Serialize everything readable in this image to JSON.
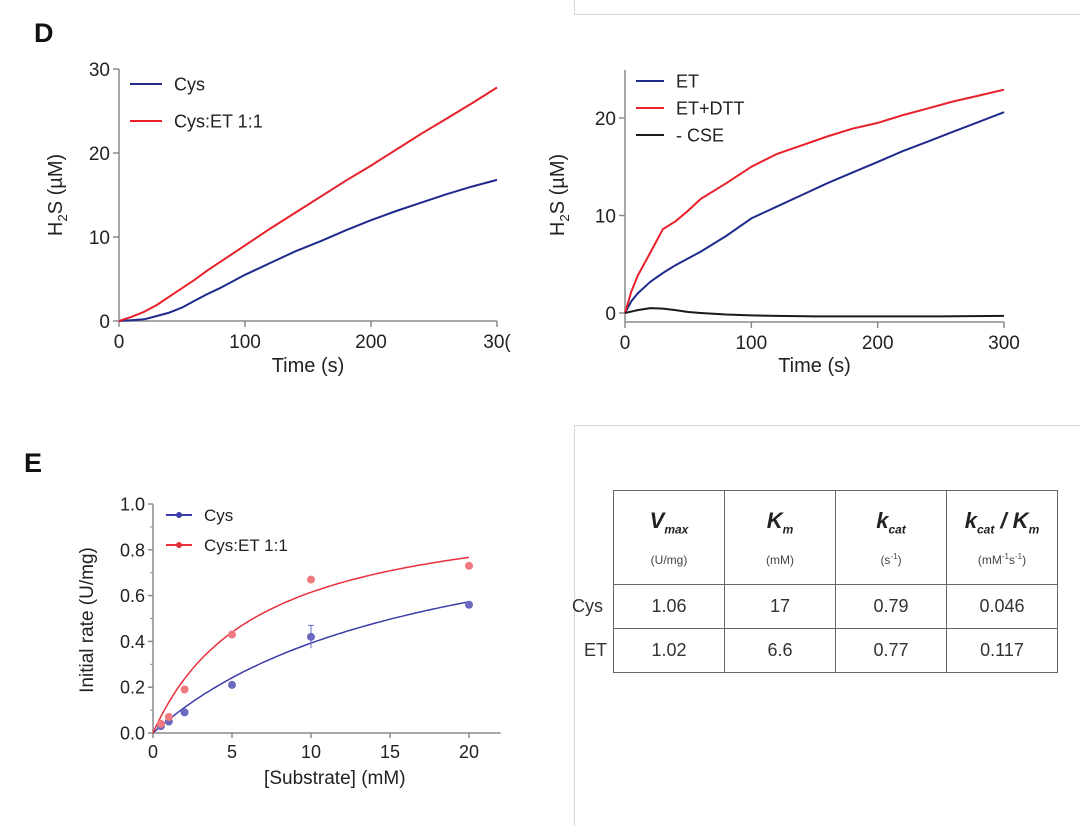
{
  "panels": {
    "D": {
      "label": "D"
    },
    "E": {
      "label": "E"
    }
  },
  "chart_data": [
    {
      "id": "D-left",
      "type": "line",
      "title": "",
      "xlabel": "Time (s)",
      "ylabel_main": "H",
      "ylabel_sub": "2",
      "ylabel_rest": "S (µM)",
      "xlim": [
        0,
        300
      ],
      "ylim": [
        0,
        30
      ],
      "xticks": [
        0,
        100,
        200,
        300
      ],
      "xtick_labels": [
        "0",
        "100",
        "200",
        "30("
      ],
      "yticks": [
        0,
        10,
        20,
        30
      ],
      "ytick_labels": [
        "0",
        "10",
        "20",
        "30"
      ],
      "grid": false,
      "legend_position": "top-left",
      "series": [
        {
          "name": "Cys",
          "color": "#1f2a8c",
          "x": [
            0,
            10,
            20,
            30,
            40,
            50,
            60,
            70,
            80,
            100,
            120,
            140,
            160,
            180,
            200,
            220,
            240,
            260,
            280,
            300
          ],
          "y": [
            0,
            0.1,
            0.2,
            0.6,
            1.0,
            1.6,
            2.4,
            3.2,
            3.9,
            5.5,
            6.9,
            8.3,
            9.5,
            10.8,
            12.0,
            13.1,
            14.1,
            15.1,
            16.0,
            16.8
          ]
        },
        {
          "name": "Cys:ET 1:1",
          "color": "#e8202a",
          "x": [
            0,
            10,
            20,
            30,
            40,
            50,
            60,
            70,
            80,
            100,
            120,
            140,
            160,
            180,
            200,
            220,
            240,
            260,
            280,
            300
          ],
          "y": [
            0,
            0.5,
            1.1,
            1.9,
            2.9,
            3.9,
            4.9,
            6.0,
            7.0,
            9.0,
            11.0,
            12.9,
            14.8,
            16.7,
            18.5,
            20.4,
            22.3,
            24.1,
            25.9,
            27.8
          ]
        }
      ]
    },
    {
      "id": "D-right",
      "type": "line",
      "title": "",
      "xlabel": "Time (s)",
      "ylabel_main": "H",
      "ylabel_sub": "2",
      "ylabel_rest": "S (µM)",
      "xlim": [
        0,
        300
      ],
      "ylim": [
        -1,
        25
      ],
      "xticks": [
        0,
        100,
        200,
        300
      ],
      "xtick_labels": [
        "0",
        "100",
        "200",
        "300"
      ],
      "yticks": [
        0,
        10,
        20
      ],
      "ytick_labels": [
        "0",
        "10",
        "20"
      ],
      "grid": false,
      "legend_position": "top-left",
      "series": [
        {
          "name": "ET",
          "color": "#1f2a8c",
          "x": [
            0,
            5,
            10,
            20,
            30,
            40,
            50,
            60,
            80,
            100,
            120,
            140,
            160,
            180,
            200,
            220,
            240,
            260,
            280,
            300
          ],
          "y": [
            0,
            1.2,
            2.0,
            3.2,
            4.1,
            4.9,
            5.6,
            6.3,
            7.9,
            9.7,
            10.9,
            12.1,
            13.3,
            14.4,
            15.5,
            16.6,
            17.6,
            18.6,
            19.6,
            20.6
          ]
        },
        {
          "name": "ET+DTT",
          "color": "#e8202a",
          "x": [
            0,
            5,
            10,
            20,
            30,
            40,
            50,
            60,
            80,
            100,
            120,
            140,
            160,
            180,
            200,
            220,
            240,
            260,
            280,
            300
          ],
          "y": [
            0,
            2.2,
            3.8,
            6.2,
            8.6,
            9.4,
            10.5,
            11.7,
            13.3,
            15.0,
            16.3,
            17.2,
            18.1,
            18.9,
            19.5,
            20.3,
            21.0,
            21.7,
            22.3,
            22.9
          ]
        },
        {
          "name": "- CSE",
          "color": "#1a1a1a",
          "x": [
            0,
            10,
            20,
            30,
            40,
            50,
            60,
            80,
            100,
            120,
            150,
            200,
            250,
            300
          ],
          "y": [
            0,
            0.3,
            0.5,
            0.45,
            0.3,
            0.1,
            0.0,
            -0.15,
            -0.25,
            -0.3,
            -0.35,
            -0.35,
            -0.35,
            -0.3
          ]
        }
      ]
    },
    {
      "id": "E",
      "type": "scatter",
      "title": "",
      "xlabel": "[Substrate] (mM)",
      "ylabel": "Initial rate (U/mg)",
      "xlim": [
        0,
        22
      ],
      "ylim": [
        0,
        1.0
      ],
      "xticks": [
        0,
        5,
        10,
        15,
        20
      ],
      "xtick_labels": [
        "0",
        "5",
        "10",
        "15",
        "20"
      ],
      "yticks": [
        0,
        0.2,
        0.4,
        0.6,
        0.8,
        1.0
      ],
      "ytick_labels": [
        "0.0",
        "0.2",
        "0.4",
        "0.6",
        "0.8",
        "1.0"
      ],
      "grid": false,
      "legend_position": "top-left",
      "series": [
        {
          "name": "Cys",
          "color": "#3c3ca8",
          "point_color": "#6a6ac0",
          "x": [
            0.5,
            1,
            2,
            5,
            10,
            20
          ],
          "y": [
            0.03,
            0.05,
            0.09,
            0.21,
            0.42,
            0.56
          ],
          "error_upper": [
            0,
            0,
            0,
            0,
            0.05,
            0
          ],
          "fit": {
            "model": "michaelis-menten",
            "Vmax": 1.06,
            "Km": 17
          }
        },
        {
          "name": "Cys:ET 1:1",
          "color": "#e8303a",
          "point_color": "#f07a80",
          "x": [
            0.5,
            1,
            2,
            5,
            10,
            20
          ],
          "y": [
            0.04,
            0.07,
            0.19,
            0.43,
            0.67,
            0.73
          ],
          "error_upper": [
            0,
            0,
            0,
            0,
            0,
            0
          ],
          "fit": {
            "model": "michaelis-menten",
            "Vmax": 1.02,
            "Km": 6.6
          }
        }
      ]
    },
    {
      "id": "kinetics-table",
      "type": "table",
      "columns": [
        {
          "symbol": "V",
          "sub": "max",
          "unit": "(U/mg)",
          "unit_sup": ""
        },
        {
          "symbol": "K",
          "sub": "m",
          "unit": "(mM)",
          "unit_sup": ""
        },
        {
          "symbol": "k",
          "sub": "cat",
          "unit": "(s",
          "unit_sup": "-1",
          "unit_end": ")"
        },
        {
          "symbol": "k",
          "sub": "cat",
          "symbol2": " / K",
          "sub2": "m",
          "unit": "(mM",
          "unit_sup": "-1",
          "unit_mid": "s",
          "unit_sup2": "-1",
          "unit_end": ")"
        }
      ],
      "rows": [
        {
          "label": "Cys",
          "values": [
            "1.06",
            "17",
            "0.79",
            "0.046"
          ]
        },
        {
          "label": "ET",
          "values": [
            "1.02",
            "6.6",
            "0.77",
            "0.117"
          ]
        }
      ]
    }
  ]
}
